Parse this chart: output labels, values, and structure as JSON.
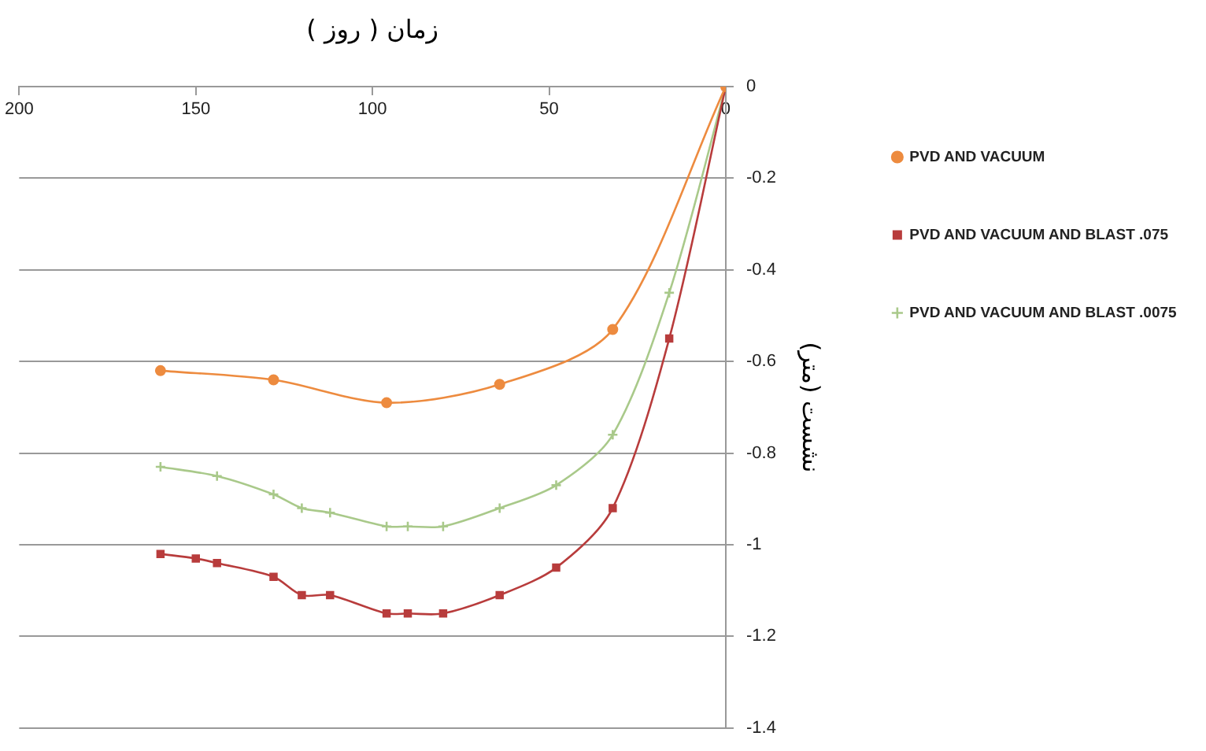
{
  "chart_data": {
    "type": "line",
    "xlabel": "زمان ( روز )",
    "ylabel": "نشست (متر)",
    "xlim": [
      200,
      0
    ],
    "xticks": [
      200,
      150,
      100,
      50,
      0
    ],
    "ylim": [
      -1.4,
      0
    ],
    "yticks": [
      0,
      -0.2,
      -0.4,
      -0.6,
      -0.8,
      -1,
      -1.2,
      -1.4
    ],
    "grid": "y",
    "legend": "top right",
    "series": [
      {
        "name": "PVD AND VACUUM",
        "color": "#ed8b3f",
        "marker": "circle",
        "x": [
          160,
          128,
          96,
          64,
          32,
          0
        ],
        "values": [
          -0.62,
          -0.64,
          -0.69,
          -0.65,
          -0.53,
          0
        ]
      },
      {
        "name": "PVD AND VACUUM AND BLAST .075",
        "color": "#b83c3c",
        "marker": "square",
        "x": [
          160,
          150,
          144,
          128,
          120,
          112,
          96,
          90,
          80,
          64,
          48,
          32,
          16,
          0
        ],
        "values": [
          -1.02,
          -1.03,
          -1.04,
          -1.07,
          -1.11,
          -1.11,
          -1.15,
          -1.15,
          -1.15,
          -1.11,
          -1.05,
          -0.92,
          -0.55,
          0
        ]
      },
      {
        "name": "PVD AND VACUUM AND BLAST .0075",
        "color": "#a9c98a",
        "marker": "cross",
        "x": [
          160,
          144,
          128,
          120,
          112,
          96,
          90,
          80,
          64,
          48,
          32,
          16,
          0
        ],
        "values": [
          -0.83,
          -0.85,
          -0.89,
          -0.92,
          -0.93,
          -0.96,
          -0.96,
          -0.96,
          -0.92,
          -0.87,
          -0.76,
          -0.45,
          0
        ]
      }
    ]
  }
}
